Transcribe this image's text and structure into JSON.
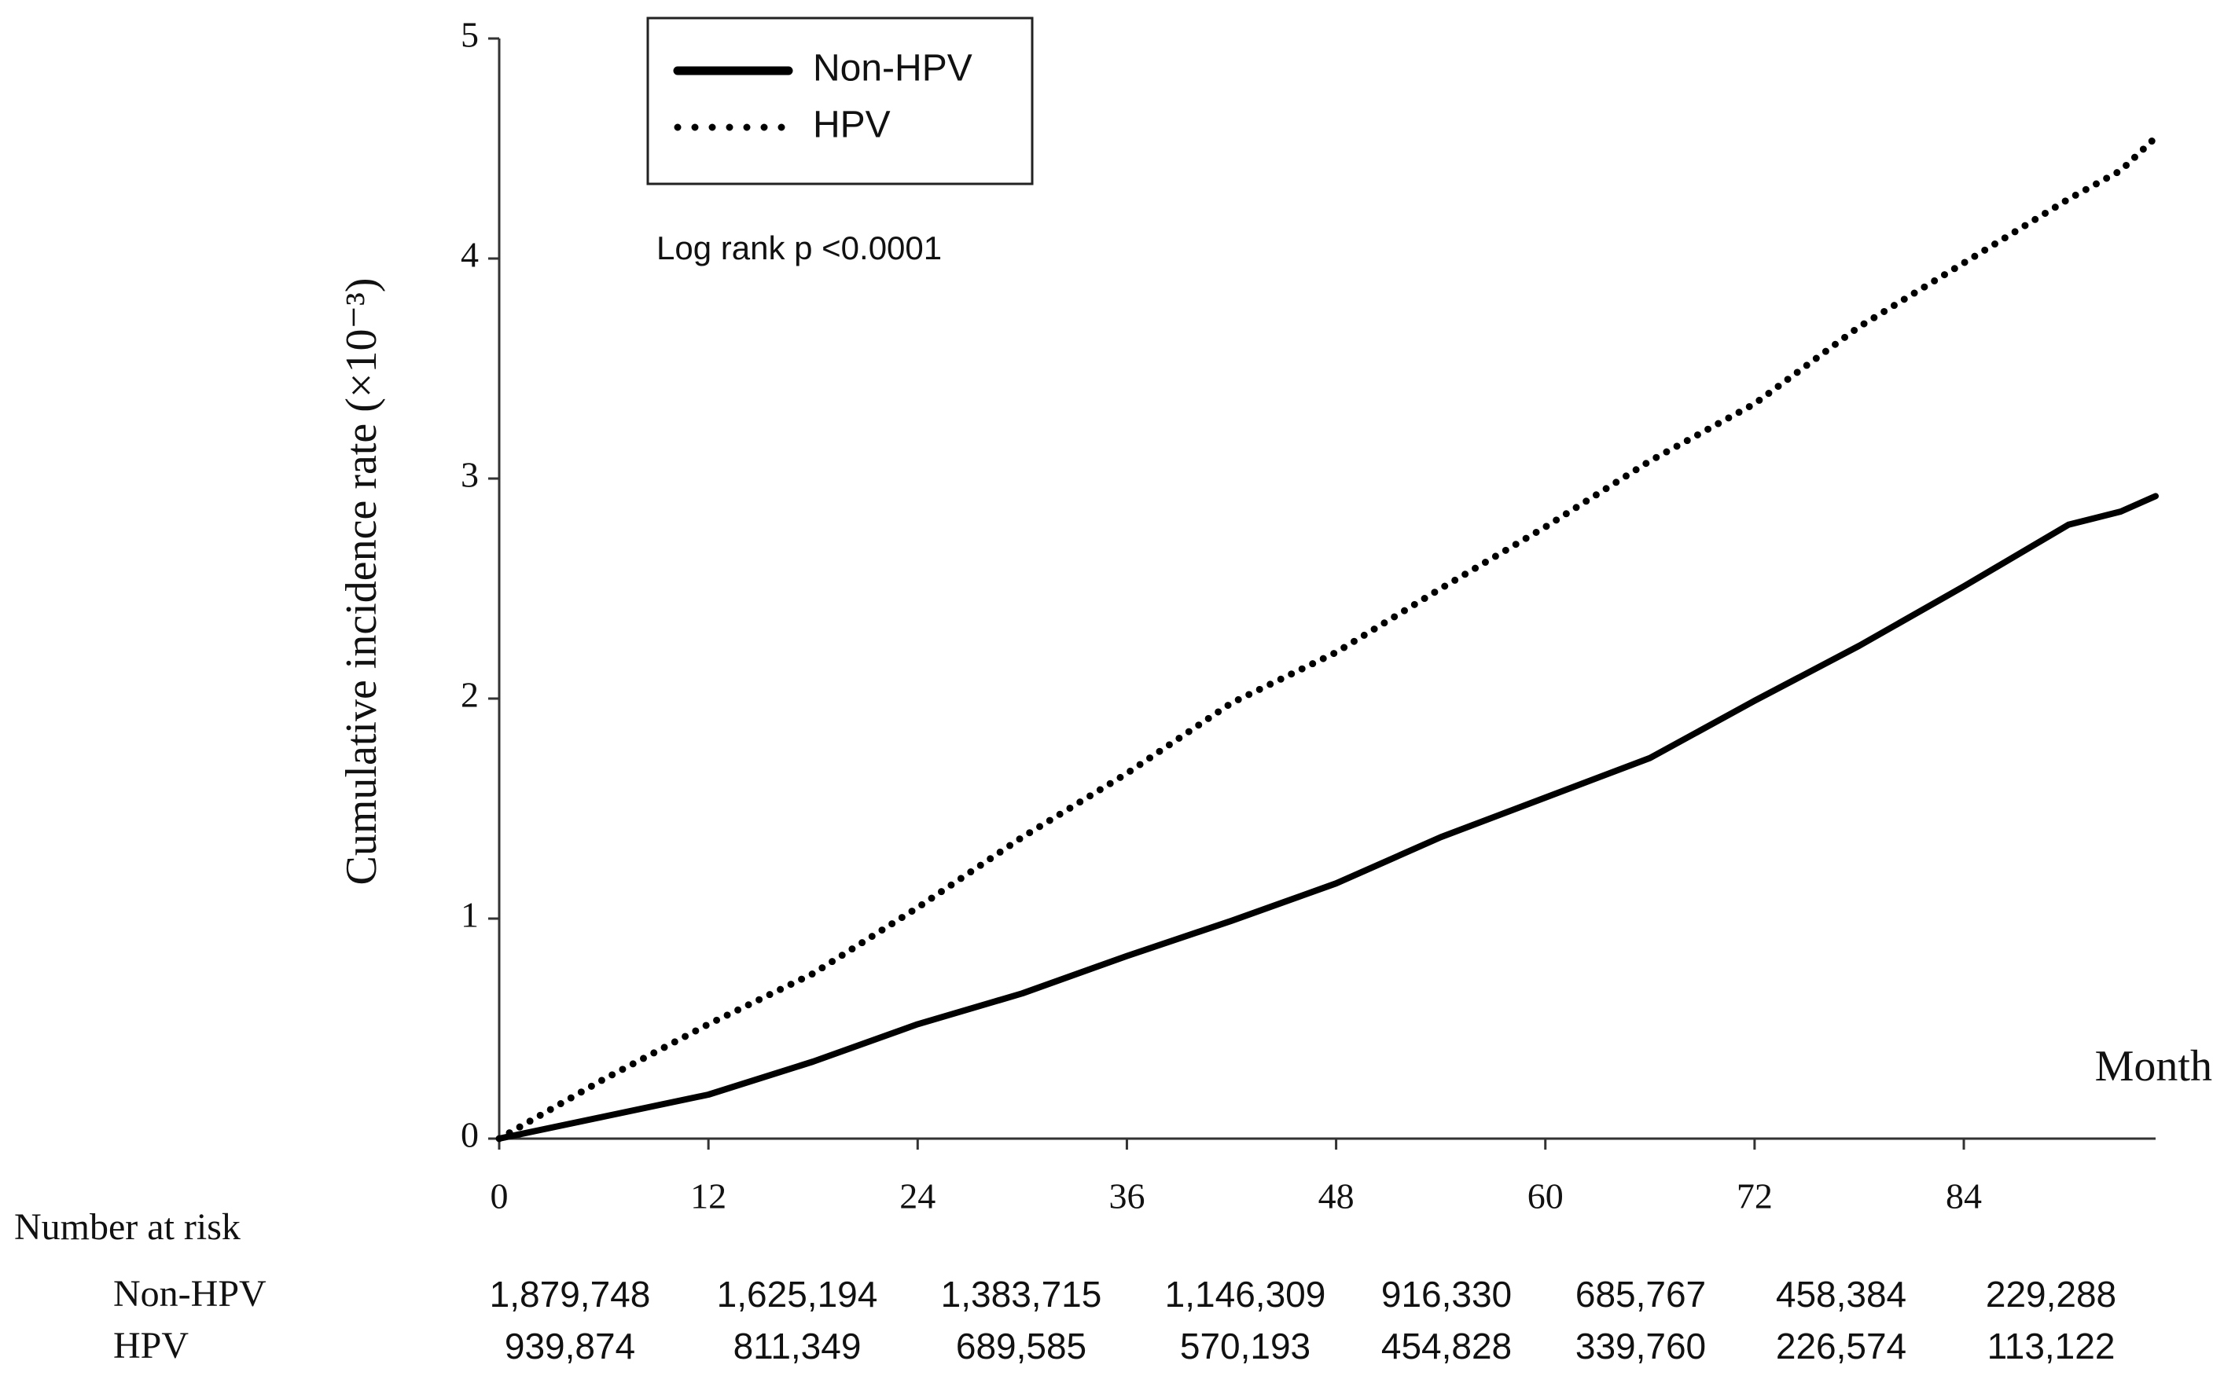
{
  "chart_data": {
    "type": "line",
    "y_label": "Cumulative incidence rate (×10⁻³)",
    "x_label": "Month",
    "annotation": "Log rank p <0.0001",
    "x": [
      0,
      6,
      12,
      18,
      24,
      30,
      36,
      42,
      48,
      54,
      60,
      66,
      72,
      78,
      84,
      90,
      93,
      95
    ],
    "series": [
      {
        "name": "Non-HPV",
        "color": "#000000",
        "style": "solid",
        "values": [
          0,
          0.1,
          0.2,
          0.35,
          0.52,
          0.66,
          0.83,
          0.99,
          1.16,
          1.37,
          1.55,
          1.73,
          1.99,
          2.24,
          2.51,
          2.79,
          2.85,
          2.92
        ]
      },
      {
        "name": "HPV",
        "color": "#000000",
        "style": "dotted",
        "values": [
          0,
          0.27,
          0.52,
          0.75,
          1.05,
          1.37,
          1.66,
          1.98,
          2.21,
          2.5,
          2.78,
          3.08,
          3.34,
          3.69,
          3.98,
          4.27,
          4.4,
          4.55
        ]
      }
    ],
    "xlim": [
      0,
      95
    ],
    "xticks": [
      0,
      12,
      24,
      36,
      48,
      60,
      72,
      84
    ],
    "ylim": [
      0,
      5
    ],
    "yticks": [
      0,
      1,
      2,
      3,
      4,
      5
    ],
    "legend": "top-left",
    "risk_table": {
      "title": "Number at risk",
      "rows": [
        {
          "name": "Non-HPV",
          "values": [
            "1,879,748",
            "1,625,194",
            "1,383,715",
            "1,146,309",
            "916,330",
            "685,767",
            "458,384",
            "229,288"
          ]
        },
        {
          "name": "HPV",
          "values": [
            "939,874",
            "811,349",
            "689,585",
            "570,193",
            "454,828",
            "339,760",
            "226,574",
            "113,122"
          ]
        }
      ]
    }
  }
}
